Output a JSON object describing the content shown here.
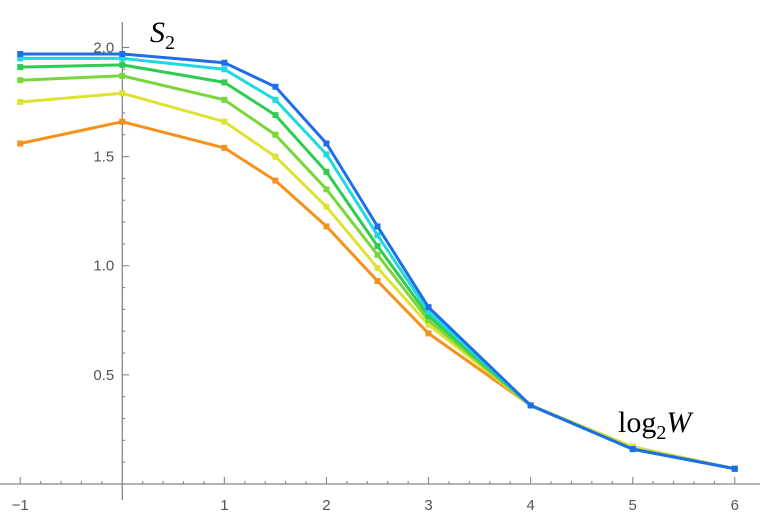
{
  "chart_data": {
    "type": "line",
    "title": "",
    "xlabel": "log2W",
    "ylabel": "S2",
    "xlabel_parts": {
      "base": "log",
      "sub": "2",
      "var": "W"
    },
    "ylabel_parts": {
      "var": "S",
      "sub": "2"
    },
    "xlim": [
      -1.1,
      6.1
    ],
    "ylim": [
      0.0,
      2.08
    ],
    "xticks": [
      -1,
      1,
      2,
      3,
      4,
      5,
      6
    ],
    "xtick_labels": [
      "−1",
      "1",
      "2",
      "3",
      "4",
      "5",
      "6"
    ],
    "yticks": [
      0.5,
      1.0,
      1.5,
      2.0
    ],
    "ytick_labels": [
      "0.5",
      "1.0",
      "1.5",
      "2.0"
    ],
    "grid": false,
    "legend": "none",
    "x": [
      -1,
      0,
      1,
      1.5,
      2,
      2.5,
      3,
      4,
      5,
      6
    ],
    "series": [
      {
        "color": "#f5921e",
        "values": [
          1.56,
          1.66,
          1.54,
          1.39,
          1.18,
          0.93,
          0.69,
          0.36,
          0.17,
          0.07
        ]
      },
      {
        "color": "#dde233",
        "values": [
          1.75,
          1.79,
          1.66,
          1.5,
          1.27,
          0.99,
          0.73,
          0.36,
          0.17,
          0.07
        ]
      },
      {
        "color": "#7ad63a",
        "values": [
          1.85,
          1.87,
          1.76,
          1.6,
          1.35,
          1.05,
          0.75,
          0.36,
          0.16,
          0.07
        ]
      },
      {
        "color": "#2ecc52",
        "values": [
          1.91,
          1.92,
          1.84,
          1.69,
          1.43,
          1.09,
          0.77,
          0.36,
          0.16,
          0.07
        ]
      },
      {
        "color": "#22d8e0",
        "values": [
          1.95,
          1.95,
          1.9,
          1.76,
          1.51,
          1.14,
          0.79,
          0.36,
          0.16,
          0.07
        ]
      },
      {
        "color": "#1f6ee8",
        "values": [
          1.97,
          1.97,
          1.93,
          1.82,
          1.56,
          1.18,
          0.81,
          0.36,
          0.16,
          0.07
        ]
      }
    ]
  }
}
